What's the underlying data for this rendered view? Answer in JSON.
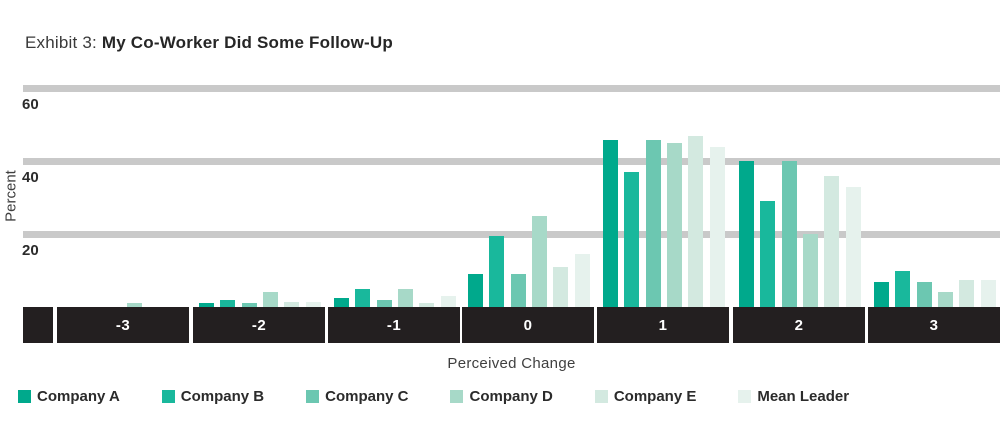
{
  "title": {
    "prefix": "Exhibit 3: ",
    "main": "My Co-Worker Did Some Follow-Up"
  },
  "chart_data": {
    "type": "bar",
    "title": "Exhibit 3: My Co-Worker Did Some Follow-Up",
    "xlabel": "Perceived Change",
    "ylabel": "Percent",
    "categories": [
      "-3",
      "-2",
      "-1",
      "0",
      "1",
      "2",
      "3"
    ],
    "series": [
      {
        "name": "Company A",
        "color": "#00a98c",
        "values": [
          0,
          1,
          2.5,
          9,
          46,
          40,
          7
        ]
      },
      {
        "name": "Company B",
        "color": "#19b89c",
        "values": [
          0,
          2,
          5,
          19.5,
          37,
          29,
          10
        ]
      },
      {
        "name": "Company C",
        "color": "#6cc7b1",
        "values": [
          0,
          1,
          2,
          9,
          46,
          40,
          7
        ]
      },
      {
        "name": "Company D",
        "color": "#a7d9c8",
        "values": [
          1,
          4,
          5,
          25,
          45,
          20,
          4
        ]
      },
      {
        "name": "Company E",
        "color": "#d3e9e0",
        "values": [
          0,
          1.5,
          1,
          11,
          47,
          36,
          7.5
        ]
      },
      {
        "name": "Mean Leader",
        "color": "#e6f2ed",
        "values": [
          0,
          1.5,
          3,
          14.5,
          44,
          33,
          7.5
        ]
      }
    ],
    "yticks": [
      20,
      40,
      60
    ],
    "ylim": [
      0,
      65
    ],
    "grid": "horizontal",
    "legend_position": "bottom"
  },
  "colors": {
    "band": "#231f20",
    "gridline": "#c9c9c9",
    "band_label": "#ffffff",
    "tick_text": "#2b2b2b",
    "axis_text": "#3f3f3f"
  }
}
